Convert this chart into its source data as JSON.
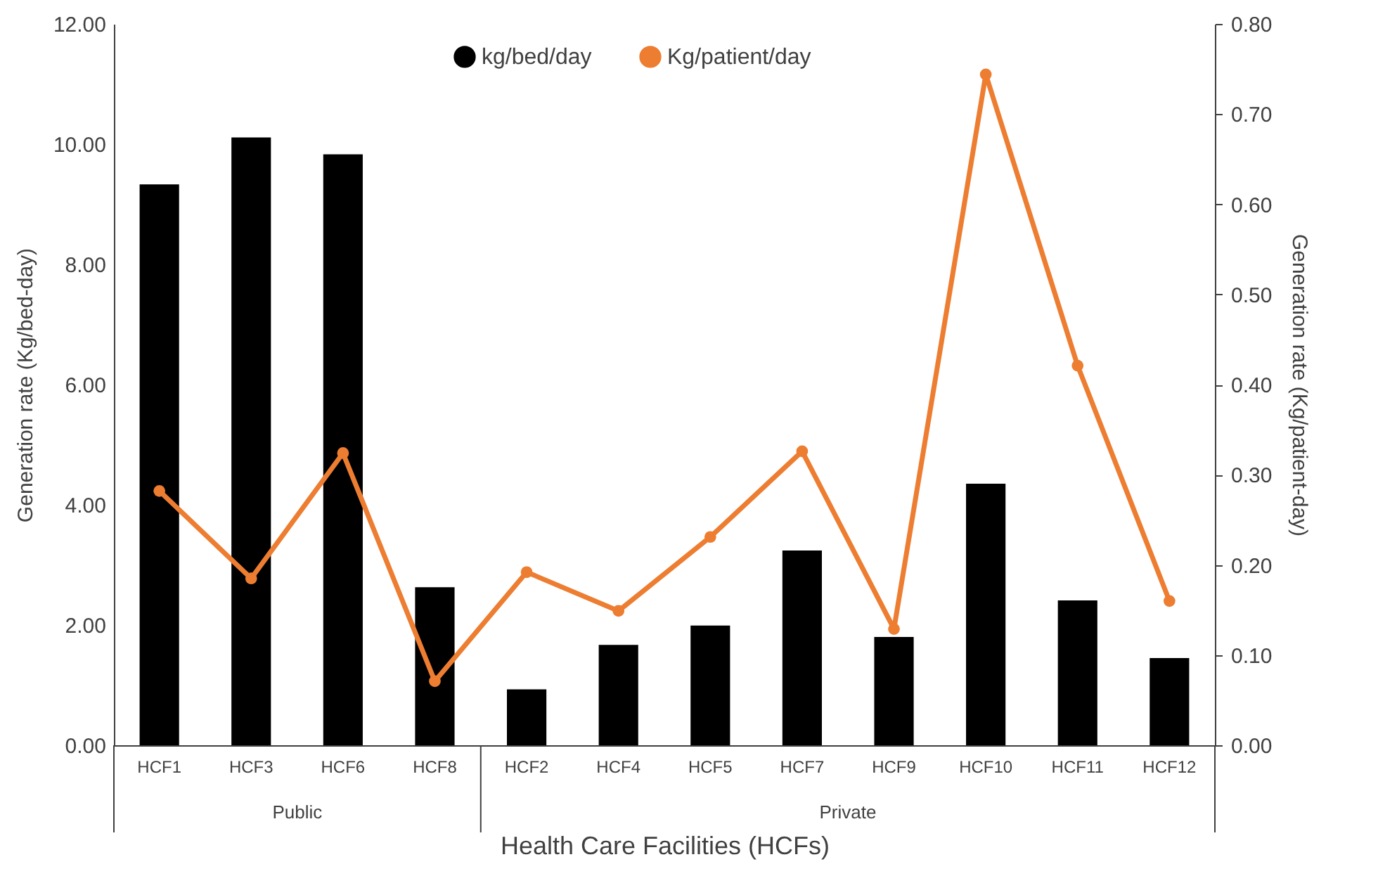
{
  "chart_data": {
    "type": "bar",
    "xlabel": "Health Care Facilities (HCFs)",
    "ylabel": "Generation rate (Kg/bed-day)",
    "y2label": "Generation rate (Kg/patient-day)",
    "categories": [
      "HCF1",
      "HCF3",
      "HCF6",
      "HCF8",
      "HCF2",
      "HCF4",
      "HCF5",
      "HCF7",
      "HCF9",
      "HCF10",
      "HCF11",
      "HCF12"
    ],
    "series": [
      {
        "name": "kg/bed/day",
        "color": "#000000",
        "values": [
          9.33,
          10.11,
          9.83,
          2.63,
          0.93,
          1.67,
          1.99,
          3.24,
          1.8,
          4.35,
          2.41,
          1.45
        ]
      },
      {
        "name": "Kg/patient/day",
        "type": "line",
        "axis": "y2",
        "color": "#ed7d31",
        "marker": "circle",
        "line_style": "solid",
        "values": [
          0.282,
          0.185,
          0.324,
          0.071,
          0.192,
          0.149,
          0.231,
          0.326,
          0.129,
          0.744,
          0.421,
          0.16
        ]
      }
    ],
    "ylim": [
      0,
      12
    ],
    "yticks": [
      {
        "value": 0,
        "label": "0.00"
      },
      {
        "value": 2,
        "label": "2.00"
      },
      {
        "value": 4,
        "label": "4.00"
      },
      {
        "value": 6,
        "label": "6.00"
      },
      {
        "value": 8,
        "label": "8.00"
      },
      {
        "value": 10,
        "label": "10.00"
      },
      {
        "value": 12,
        "label": "12.00"
      }
    ],
    "y2lim": [
      0,
      0.8
    ],
    "y2ticks": [
      {
        "value": 0,
        "label": "0.00"
      },
      {
        "value": 0.1,
        "label": "0.10"
      },
      {
        "value": 0.2,
        "label": "0.20"
      },
      {
        "value": 0.3,
        "label": "0.30"
      },
      {
        "value": 0.4,
        "label": "0.40"
      },
      {
        "value": 0.5,
        "label": "0.50"
      },
      {
        "value": 0.6,
        "label": "0.60"
      },
      {
        "value": 0.7,
        "label": "0.70"
      },
      {
        "value": 0.8,
        "label": "0.80"
      }
    ],
    "annotations": [
      "Public",
      "Private"
    ],
    "legend": "top",
    "grid": false
  }
}
